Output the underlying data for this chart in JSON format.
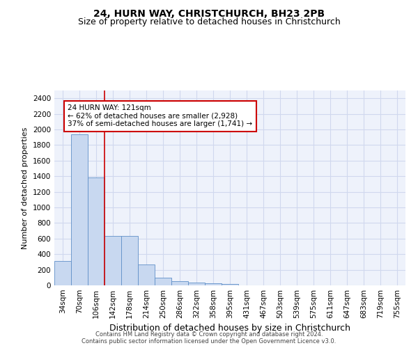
{
  "title_line1": "24, HURN WAY, CHRISTCHURCH, BH23 2PB",
  "title_line2": "Size of property relative to detached houses in Christchurch",
  "xlabel": "Distribution of detached houses by size in Christchurch",
  "ylabel": "Number of detached properties",
  "bar_color": "#c8d8f0",
  "bar_edge_color": "#6090c8",
  "categories": [
    "34sqm",
    "70sqm",
    "106sqm",
    "142sqm",
    "178sqm",
    "214sqm",
    "250sqm",
    "286sqm",
    "322sqm",
    "358sqm",
    "395sqm",
    "431sqm",
    "467sqm",
    "503sqm",
    "539sqm",
    "575sqm",
    "611sqm",
    "647sqm",
    "683sqm",
    "719sqm",
    "755sqm"
  ],
  "values": [
    315,
    1940,
    1380,
    630,
    630,
    270,
    100,
    50,
    35,
    30,
    20,
    0,
    0,
    0,
    0,
    0,
    0,
    0,
    0,
    0,
    0
  ],
  "ylim": [
    0,
    2500
  ],
  "yticks": [
    0,
    200,
    400,
    600,
    800,
    1000,
    1200,
    1400,
    1600,
    1800,
    2000,
    2200,
    2400
  ],
  "vline_x": 2.5,
  "annotation_text": "24 HURN WAY: 121sqm\n← 62% of detached houses are smaller (2,928)\n37% of semi-detached houses are larger (1,741) →",
  "annotation_box_color": "#ffffff",
  "annotation_box_edge": "#cc0000",
  "vline_color": "#cc0000",
  "footer_line1": "Contains HM Land Registry data © Crown copyright and database right 2024.",
  "footer_line2": "Contains public sector information licensed under the Open Government Licence v3.0.",
  "background_color": "#eef2fb",
  "grid_color": "#d0d8ee",
  "title_fontsize": 10,
  "subtitle_fontsize": 9,
  "tick_fontsize": 7.5,
  "ylabel_fontsize": 8,
  "xlabel_fontsize": 9
}
